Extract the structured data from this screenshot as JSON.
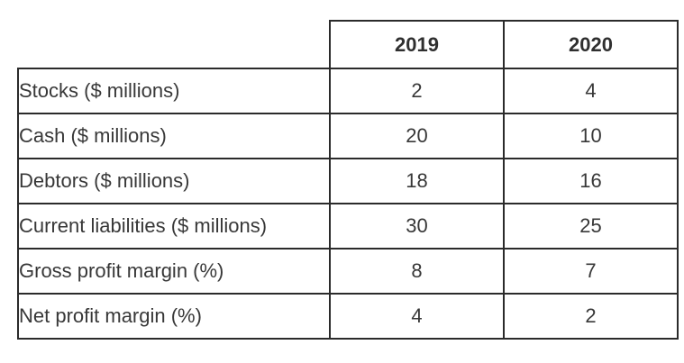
{
  "chart_data": {
    "type": "table",
    "title": "",
    "columns": [
      "",
      "2019",
      "2020"
    ],
    "rows": [
      {
        "label": "Stocks ($ millions)",
        "values": [
          "2",
          "4"
        ]
      },
      {
        "label": "Cash ($ millions)",
        "values": [
          "20",
          "10"
        ]
      },
      {
        "label": "Debtors ($ millions)",
        "values": [
          "18",
          "16"
        ]
      },
      {
        "label": "Current liabilities ($ millions)",
        "values": [
          "30",
          "25"
        ]
      },
      {
        "label": "Gross profit margin (%)",
        "values": [
          "8",
          "7"
        ]
      },
      {
        "label": "Net profit margin (%)",
        "values": [
          "4",
          "2"
        ]
      }
    ],
    "layout": {
      "corner_cell_borderless": true,
      "header_bold": true,
      "values_centered": true
    },
    "colors": {
      "border": "#2b2b2b",
      "text": "#383838",
      "background": "#ffffff"
    }
  }
}
